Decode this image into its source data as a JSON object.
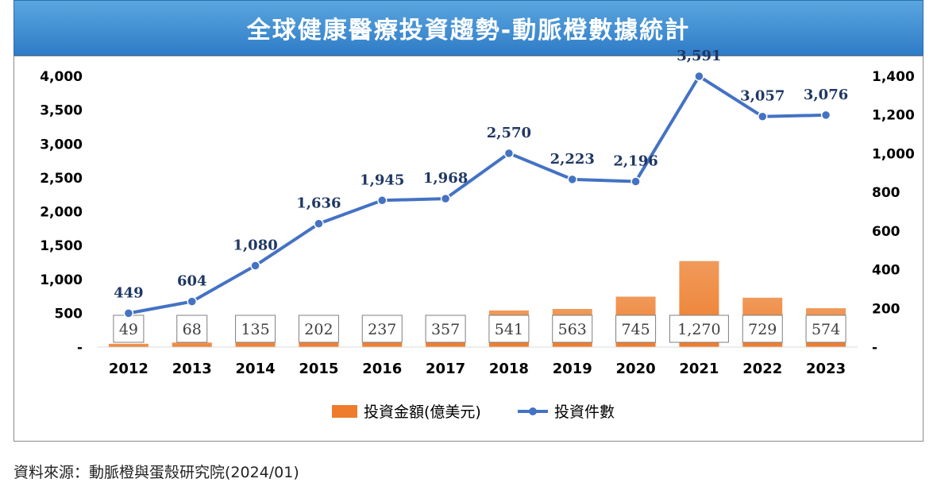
{
  "title": "全球健康醫療投資趨勢-動脈橙數據統計",
  "source_note": "資料來源：動脈橙與蛋殼研究院(2024/01)",
  "colors": {
    "bar": "#ee7c2c",
    "line": "#4472c4",
    "label": "#1f3864",
    "title_bg": "#3d8ad2"
  },
  "chart_data": {
    "type": "bar",
    "categories": [
      "2012",
      "2013",
      "2014",
      "2015",
      "2016",
      "2017",
      "2018",
      "2019",
      "2020",
      "2021",
      "2022",
      "2023"
    ],
    "series": [
      {
        "name": "投資金額(億美元)",
        "type": "bar",
        "axis": "left",
        "values": [
          49,
          68,
          135,
          202,
          237,
          357,
          541,
          563,
          745,
          1270,
          729,
          574
        ],
        "value_labels": [
          "49",
          "68",
          "135",
          "202",
          "237",
          "357",
          "541",
          "563",
          "745",
          "1,270",
          "729",
          "574"
        ]
      },
      {
        "name": "投資件數",
        "type": "line",
        "axis": "right",
        "values": [
          449,
          604,
          1080,
          1636,
          1945,
          1968,
          2570,
          2223,
          2196,
          3591,
          3057,
          3076
        ],
        "value_labels": [
          "449",
          "604",
          "1,080",
          "1,636",
          "1,945",
          "1,968",
          "2,570",
          "2,223",
          "2,196",
          "3,591",
          "3,057",
          "3,076"
        ]
      }
    ],
    "left_axis": {
      "ylim": [
        0,
        4000
      ],
      "ticks": [
        0,
        500,
        1000,
        1500,
        2000,
        2500,
        3000,
        3500,
        4000
      ],
      "tick_labels": [
        "-",
        "500",
        "1,000",
        "1,500",
        "2,000",
        "2,500",
        "3,000",
        "3,500",
        "4,000"
      ]
    },
    "right_axis": {
      "ylim": [
        0,
        1400
      ],
      "ticks": [
        0,
        200,
        400,
        600,
        800,
        1000,
        1200,
        1400
      ],
      "tick_labels": [
        "-",
        "200",
        "400",
        "600",
        "800",
        "1,000",
        "1,200",
        "1,400"
      ]
    },
    "legend": {
      "position": "bottom",
      "items": [
        "投資金額(億美元)",
        "投資件數"
      ]
    },
    "grid": false
  }
}
